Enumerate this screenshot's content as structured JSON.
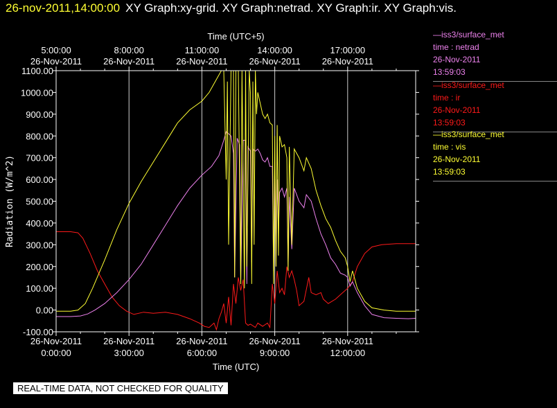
{
  "header": {
    "timestamp": "26-nov-2011,14:00:00",
    "graphs": "XY Graph:xy-grid.  XY Graph:netrad.  XY Graph:ir.  XY Graph:vis."
  },
  "legend": [
    {
      "line": "—iss3/surface_met",
      "var": "time : netrad",
      "date": "26-Nov-2011",
      "time": "13:59:03",
      "color": "#ee82ee"
    },
    {
      "line": "—iss3/surface_met",
      "var": "time : ir",
      "date": "26-Nov-2011",
      "time": "13:59:03",
      "color": "#ff1a1a"
    },
    {
      "line": "—iss3/surface_met",
      "var": "time : vis",
      "date": "26-Nov-2011",
      "time": "13:59:03",
      "color": "#ffff33"
    }
  ],
  "banner": "REAL-TIME DATA, NOT CHECKED FOR QUALITY",
  "chart_data": {
    "type": "line",
    "ylabel": "Radiation (W/m^2)",
    "xlabel": "Time (UTC)",
    "x2label": "Time (UTC+5)",
    "ylim": [
      -100,
      1100
    ],
    "xlim": [
      0,
      14.8
    ],
    "yticks": [
      -100,
      0,
      100,
      200,
      300,
      400,
      500,
      600,
      700,
      800,
      900,
      1000,
      1100
    ],
    "ytick_labels": [
      "-100.00",
      "0.00",
      "100.00",
      "200.00",
      "300.00",
      "400.00",
      "500.00",
      "600.00",
      "700.00",
      "800.00",
      "900.00",
      "1000.00",
      "1100.00"
    ],
    "xticks": [
      {
        "x": 0,
        "date": "26-Nov-2011",
        "time": "0:00:00"
      },
      {
        "x": 3,
        "date": "26-Nov-2011",
        "time": "3:00:00"
      },
      {
        "x": 6,
        "date": "26-Nov-2011",
        "time": "6:00:00"
      },
      {
        "x": 9,
        "date": "26-Nov-2011",
        "time": "9:00:00"
      },
      {
        "x": 12,
        "date": "26-Nov-2011",
        "time": "12:00:00"
      }
    ],
    "x2ticks": [
      {
        "x": 0,
        "time": "5:00:00",
        "date": "26-Nov-2011"
      },
      {
        "x": 3,
        "time": "8:00:00",
        "date": "26-Nov-2011"
      },
      {
        "x": 6,
        "time": "11:00:00",
        "date": "26-Nov-2011"
      },
      {
        "x": 9,
        "time": "14:00:00",
        "date": "26-Nov-2011"
      },
      {
        "x": 12,
        "time": "17:00:00",
        "date": "26-Nov-2011"
      }
    ],
    "series": [
      {
        "name": "netrad",
        "color": "#ee82ee",
        "points": [
          [
            0,
            -30
          ],
          [
            0.6,
            -30
          ],
          [
            1.0,
            -27
          ],
          [
            1.3,
            -18
          ],
          [
            1.6,
            0
          ],
          [
            2.0,
            30
          ],
          [
            2.5,
            80
          ],
          [
            3.0,
            140
          ],
          [
            3.5,
            210
          ],
          [
            4.0,
            300
          ],
          [
            4.5,
            390
          ],
          [
            5.0,
            480
          ],
          [
            5.5,
            560
          ],
          [
            6.0,
            620
          ],
          [
            6.4,
            660
          ],
          [
            6.7,
            710
          ],
          [
            6.9,
            780
          ],
          [
            7.0,
            820
          ],
          [
            7.1,
            810
          ],
          [
            7.2,
            800
          ],
          [
            7.3,
            720
          ],
          [
            7.35,
            150
          ],
          [
            7.45,
            790
          ],
          [
            7.55,
            760
          ],
          [
            7.6,
            120
          ],
          [
            7.7,
            780
          ],
          [
            7.8,
            780
          ],
          [
            7.85,
            120
          ],
          [
            7.9,
            750
          ],
          [
            8.0,
            730
          ],
          [
            8.05,
            220
          ],
          [
            8.1,
            740
          ],
          [
            8.2,
            730
          ],
          [
            8.3,
            740
          ],
          [
            8.4,
            720
          ],
          [
            8.5,
            690
          ],
          [
            8.6,
            680
          ],
          [
            8.7,
            700
          ],
          [
            8.8,
            660
          ],
          [
            8.9,
            660
          ],
          [
            8.95,
            180
          ],
          [
            9.0,
            650
          ],
          [
            9.05,
            200
          ],
          [
            9.1,
            600
          ],
          [
            9.15,
            350
          ],
          [
            9.2,
            540
          ],
          [
            9.3,
            560
          ],
          [
            9.4,
            520
          ],
          [
            9.5,
            560
          ],
          [
            9.55,
            200
          ],
          [
            9.6,
            520
          ],
          [
            9.7,
            280
          ],
          [
            9.8,
            560
          ],
          [
            10.0,
            500
          ],
          [
            10.2,
            470
          ],
          [
            10.3,
            530
          ],
          [
            10.5,
            500
          ],
          [
            10.7,
            420
          ],
          [
            10.9,
            350
          ],
          [
            11.1,
            300
          ],
          [
            11.3,
            240
          ],
          [
            11.5,
            210
          ],
          [
            11.7,
            170
          ],
          [
            11.9,
            160
          ],
          [
            12.0,
            150
          ],
          [
            12.1,
            110
          ],
          [
            12.2,
            130
          ],
          [
            12.4,
            80
          ],
          [
            12.7,
            20
          ],
          [
            13.0,
            -20
          ],
          [
            13.5,
            -35
          ],
          [
            14.0,
            -38
          ],
          [
            14.5,
            -40
          ],
          [
            14.8,
            -38
          ]
        ]
      },
      {
        "name": "ir",
        "color": "#ff1a1a",
        "points": [
          [
            0,
            360
          ],
          [
            0.6,
            360
          ],
          [
            0.9,
            355
          ],
          [
            1.1,
            330
          ],
          [
            1.4,
            260
          ],
          [
            1.7,
            180
          ],
          [
            2.0,
            120
          ],
          [
            2.3,
            60
          ],
          [
            2.6,
            20
          ],
          [
            2.9,
            -5
          ],
          [
            3.2,
            -20
          ],
          [
            3.6,
            -10
          ],
          [
            4.0,
            -15
          ],
          [
            4.5,
            -10
          ],
          [
            5.0,
            -20
          ],
          [
            5.5,
            -40
          ],
          [
            5.9,
            -60
          ],
          [
            6.1,
            -75
          ],
          [
            6.3,
            -80
          ],
          [
            6.5,
            -60
          ],
          [
            6.6,
            -90
          ],
          [
            6.7,
            -40
          ],
          [
            6.8,
            -10
          ],
          [
            6.9,
            30
          ],
          [
            7.0,
            -60
          ],
          [
            7.1,
            60
          ],
          [
            7.2,
            -70
          ],
          [
            7.3,
            120
          ],
          [
            7.4,
            30
          ],
          [
            7.5,
            150
          ],
          [
            7.6,
            90
          ],
          [
            7.7,
            140
          ],
          [
            7.8,
            -60
          ],
          [
            7.9,
            -70
          ],
          [
            8.0,
            -65
          ],
          [
            8.2,
            -80
          ],
          [
            8.3,
            -60
          ],
          [
            8.5,
            -75
          ],
          [
            8.7,
            -60
          ],
          [
            8.8,
            -80
          ],
          [
            8.9,
            120
          ],
          [
            9.0,
            30
          ],
          [
            9.1,
            180
          ],
          [
            9.2,
            80
          ],
          [
            9.3,
            100
          ],
          [
            9.4,
            70
          ],
          [
            9.5,
            200
          ],
          [
            9.6,
            150
          ],
          [
            9.7,
            180
          ],
          [
            9.8,
            140
          ],
          [
            9.9,
            90
          ],
          [
            10.0,
            20
          ],
          [
            10.2,
            40
          ],
          [
            10.4,
            150
          ],
          [
            10.5,
            80
          ],
          [
            10.7,
            70
          ],
          [
            10.9,
            80
          ],
          [
            11.0,
            50
          ],
          [
            11.2,
            30
          ],
          [
            11.5,
            50
          ],
          [
            11.8,
            80
          ],
          [
            12.0,
            100
          ],
          [
            12.2,
            130
          ],
          [
            12.4,
            200
          ],
          [
            12.7,
            260
          ],
          [
            13.0,
            290
          ],
          [
            13.4,
            300
          ],
          [
            14.0,
            305
          ],
          [
            14.5,
            305
          ],
          [
            14.8,
            305
          ]
        ]
      },
      {
        "name": "vis",
        "color": "#ffff33",
        "points": [
          [
            0,
            -5
          ],
          [
            0.6,
            -5
          ],
          [
            0.9,
            0
          ],
          [
            1.2,
            30
          ],
          [
            1.5,
            100
          ],
          [
            2.0,
            230
          ],
          [
            2.5,
            370
          ],
          [
            3.0,
            490
          ],
          [
            3.5,
            590
          ],
          [
            4.0,
            680
          ],
          [
            4.5,
            770
          ],
          [
            5.0,
            860
          ],
          [
            5.5,
            920
          ],
          [
            6.0,
            960
          ],
          [
            6.3,
            1000
          ],
          [
            6.6,
            1060
          ],
          [
            6.8,
            1100
          ],
          [
            6.9,
            1100
          ],
          [
            7.0,
            600
          ],
          [
            7.05,
            1050
          ],
          [
            7.1,
            300
          ],
          [
            7.2,
            1100
          ],
          [
            7.3,
            1100
          ],
          [
            7.35,
            150
          ],
          [
            7.4,
            1100
          ],
          [
            7.5,
            1100
          ],
          [
            7.6,
            120
          ],
          [
            7.65,
            1100
          ],
          [
            7.75,
            100
          ],
          [
            7.8,
            1100
          ],
          [
            7.85,
            200
          ],
          [
            7.95,
            1100
          ],
          [
            8.0,
            1000
          ],
          [
            8.05,
            120
          ],
          [
            8.1,
            1050
          ],
          [
            8.15,
            300
          ],
          [
            8.2,
            1100
          ],
          [
            8.25,
            900
          ],
          [
            8.3,
            1000
          ],
          [
            8.4,
            950
          ],
          [
            8.5,
            900
          ],
          [
            8.6,
            880
          ],
          [
            8.7,
            900
          ],
          [
            8.8,
            860
          ],
          [
            8.9,
            850
          ],
          [
            8.95,
            120
          ],
          [
            9.0,
            800
          ],
          [
            9.05,
            200
          ],
          [
            9.1,
            850
          ],
          [
            9.15,
            250
          ],
          [
            9.2,
            800
          ],
          [
            9.3,
            750
          ],
          [
            9.4,
            760
          ],
          [
            9.5,
            700
          ],
          [
            9.55,
            180
          ],
          [
            9.6,
            750
          ],
          [
            9.7,
            300
          ],
          [
            9.8,
            740
          ],
          [
            10.0,
            700
          ],
          [
            10.2,
            640
          ],
          [
            10.3,
            700
          ],
          [
            10.5,
            650
          ],
          [
            10.7,
            550
          ],
          [
            10.9,
            480
          ],
          [
            11.1,
            420
          ],
          [
            11.3,
            380
          ],
          [
            11.5,
            320
          ],
          [
            11.7,
            270
          ],
          [
            11.9,
            240
          ],
          [
            12.0,
            200
          ],
          [
            12.1,
            130
          ],
          [
            12.2,
            180
          ],
          [
            12.4,
            100
          ],
          [
            12.7,
            40
          ],
          [
            13.0,
            10
          ],
          [
            13.5,
            0
          ],
          [
            14.0,
            -5
          ],
          [
            14.5,
            -5
          ],
          [
            14.8,
            -5
          ]
        ]
      }
    ]
  }
}
